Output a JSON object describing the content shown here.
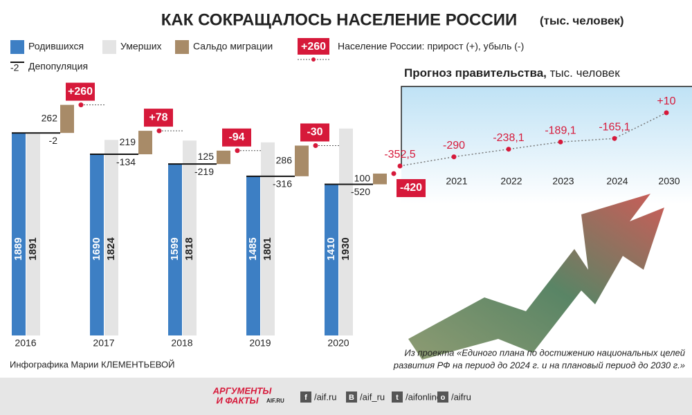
{
  "title": "КАК СОКРАЩАЛОСЬ НАСЕЛЕНИЕ РОССИИ",
  "subtitle": "(тыс. человек)",
  "chart_data": [
    {
      "type": "bar",
      "categories": [
        "2016",
        "2017",
        "2018",
        "2019",
        "2020"
      ],
      "series": [
        {
          "name": "Родившихся",
          "color": "#3d7fc4",
          "values": [
            1889,
            1690,
            1599,
            1485,
            1410
          ]
        },
        {
          "name": "Умерших",
          "color": "#e4e4e4",
          "values": [
            1891,
            1824,
            1818,
            1801,
            1930
          ]
        },
        {
          "name": "Сальдо миграции",
          "color": "#a88b68",
          "values": [
            262,
            219,
            125,
            286,
            100
          ]
        },
        {
          "name": "Население России: прирост (+), убыль (-)",
          "color": "#d6193a",
          "values": [
            260,
            78,
            -94,
            -30,
            -420
          ],
          "value_labels": [
            "+260",
            "+78",
            "-94",
            "-30",
            "-420"
          ]
        },
        {
          "name": "Депопуляция",
          "color": "#111111",
          "values": [
            -2,
            -134,
            -219,
            -316,
            -520
          ]
        }
      ]
    },
    {
      "type": "line",
      "title": "Прогноз правительства,",
      "subtitle": "тыс. человек",
      "color": "#d6193a",
      "categories": [
        null,
        "2021",
        "2022",
        "2023",
        "2024",
        "2030"
      ],
      "values": [
        -352.5,
        -290,
        -238.1,
        -189.1,
        -165.1,
        10
      ],
      "value_labels": [
        "-352,5",
        "-290",
        "-238,1",
        "-189,1",
        "-165,1",
        "+10"
      ]
    }
  ],
  "footer": {
    "credit": "Инфографика Марии КЛЕМЕНТЬЕВОЙ",
    "source": [
      "Из проекта «Единого плана по достижению национальных целей",
      "развития РФ на период до 2024 г. и на плановый период до 2030 г.»"
    ],
    "logo": [
      "АРГУМЕНТЫ",
      "И ФАКТЫ",
      "AIF.RU"
    ],
    "social": [
      {
        "icon": "f",
        "handle": "/aif.ru"
      },
      {
        "icon": "B",
        "handle": "/aif_ru"
      },
      {
        "icon": "t",
        "handle": "/aifonline"
      },
      {
        "icon": "o",
        "handle": "/aifru"
      }
    ]
  }
}
